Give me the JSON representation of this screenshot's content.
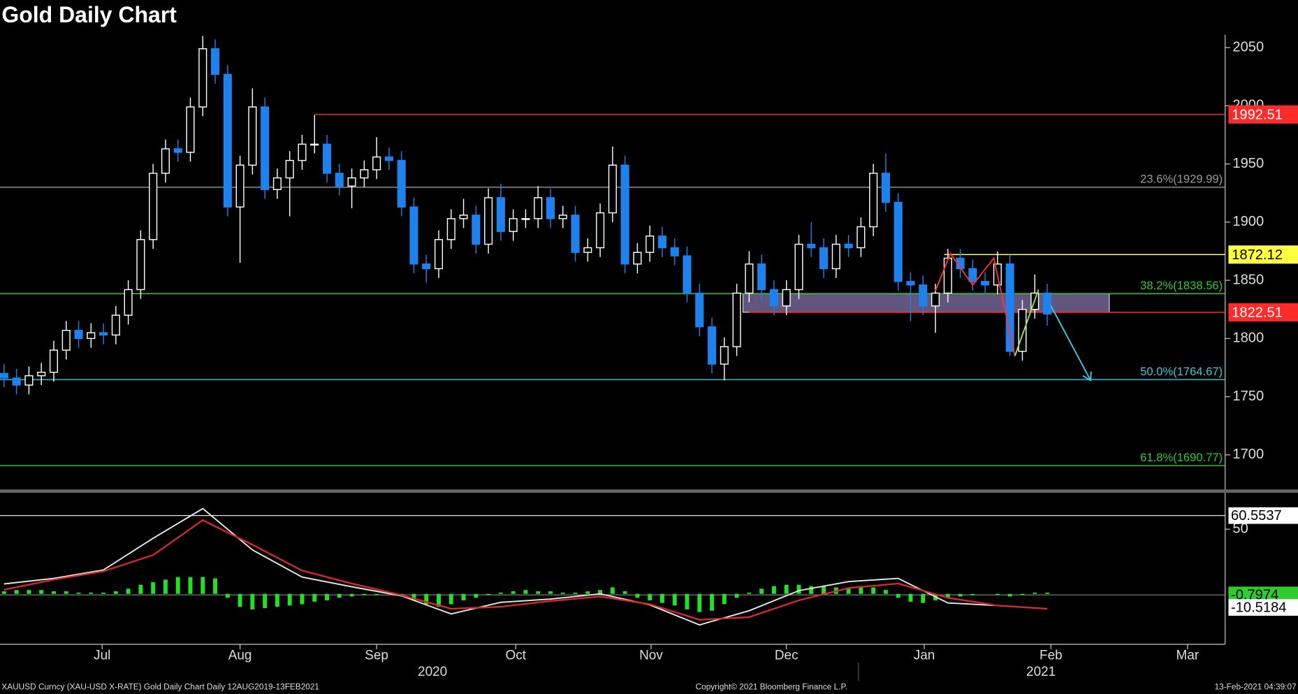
{
  "chart_data": [
    {
      "type": "candlestick",
      "title": "Gold Daily Chart",
      "candles": [
        [
          1770,
          1778,
          1758,
          1766
        ],
        [
          1766,
          1774,
          1752,
          1760
        ],
        [
          1760,
          1776,
          1752,
          1768
        ],
        [
          1768,
          1779,
          1760,
          1771
        ],
        [
          1771,
          1798,
          1763,
          1790
        ],
        [
          1790,
          1815,
          1782,
          1807
        ],
        [
          1807,
          1815,
          1792,
          1800
        ],
        [
          1800,
          1813,
          1792,
          1805
        ],
        [
          1805,
          1813,
          1795,
          1803
        ],
        [
          1803,
          1828,
          1795,
          1820
        ],
        [
          1820,
          1850,
          1812,
          1842
        ],
        [
          1842,
          1893,
          1834,
          1885
        ],
        [
          1885,
          1950,
          1877,
          1942
        ],
        [
          1942,
          1971,
          1934,
          1963
        ],
        [
          1963,
          1971,
          1952,
          1960
        ],
        [
          1960,
          2007,
          1952,
          1999
        ],
        [
          1999,
          2060,
          1991,
          2049
        ],
        [
          2049,
          2057,
          2019,
          2027
        ],
        [
          2027,
          2035,
          1905,
          1913
        ],
        [
          1913,
          1957,
          1865,
          1949
        ],
        [
          1949,
          2015,
          1941,
          1999
        ],
        [
          1999,
          2007,
          1920,
          1928
        ],
        [
          1928,
          1946,
          1920,
          1938
        ],
        [
          1938,
          1961,
          1905,
          1953
        ],
        [
          1953,
          1975,
          1945,
          1967
        ],
        [
          1967,
          1992,
          1959,
          1967
        ],
        [
          1967,
          1975,
          1934,
          1942
        ],
        [
          1942,
          1950,
          1923,
          1931
        ],
        [
          1931,
          1946,
          1912,
          1938
        ],
        [
          1938,
          1953,
          1930,
          1945
        ],
        [
          1945,
          1973,
          1937,
          1956
        ],
        [
          1956,
          1964,
          1945,
          1953
        ],
        [
          1953,
          1961,
          1905,
          1913
        ],
        [
          1913,
          1921,
          1856,
          1864
        ],
        [
          1864,
          1872,
          1848,
          1860
        ],
        [
          1860,
          1893,
          1852,
          1885
        ],
        [
          1885,
          1911,
          1877,
          1903
        ],
        [
          1903,
          1920,
          1895,
          1906
        ],
        [
          1906,
          1914,
          1873,
          1881
        ],
        [
          1881,
          1929,
          1873,
          1921
        ],
        [
          1921,
          1933,
          1884,
          1892
        ],
        [
          1892,
          1911,
          1884,
          1903
        ],
        [
          1903,
          1911,
          1895,
          1903
        ],
        [
          1903,
          1931,
          1895,
          1921
        ],
        [
          1921,
          1929,
          1895,
          1903
        ],
        [
          1903,
          1914,
          1895,
          1906
        ],
        [
          1906,
          1914,
          1866,
          1874
        ],
        [
          1874,
          1886,
          1866,
          1878
        ],
        [
          1878,
          1916,
          1870,
          1908
        ],
        [
          1908,
          1965,
          1900,
          1949
        ],
        [
          1949,
          1957,
          1856,
          1864
        ],
        [
          1864,
          1882,
          1856,
          1874
        ],
        [
          1874,
          1897,
          1866,
          1888
        ],
        [
          1888,
          1896,
          1870,
          1878
        ],
        [
          1878,
          1886,
          1863,
          1871
        ],
        [
          1871,
          1879,
          1831,
          1839
        ],
        [
          1839,
          1847,
          1802,
          1810
        ],
        [
          1810,
          1818,
          1770,
          1778
        ],
        [
          1778,
          1801,
          1764,
          1793
        ],
        [
          1793,
          1847,
          1785,
          1839
        ],
        [
          1839,
          1875,
          1831,
          1864
        ],
        [
          1864,
          1872,
          1834,
          1842
        ],
        [
          1842,
          1850,
          1820,
          1828
        ],
        [
          1828,
          1850,
          1820,
          1842
        ],
        [
          1842,
          1889,
          1834,
          1881
        ],
        [
          1881,
          1900,
          1870,
          1878
        ],
        [
          1878,
          1886,
          1852,
          1860
        ],
        [
          1860,
          1889,
          1852,
          1881
        ],
        [
          1881,
          1889,
          1870,
          1878
        ],
        [
          1878,
          1904,
          1870,
          1896
        ],
        [
          1896,
          1950,
          1888,
          1942
        ],
        [
          1942,
          1959,
          1909,
          1917
        ],
        [
          1917,
          1925,
          1841,
          1849
        ],
        [
          1849,
          1857,
          1815,
          1846
        ],
        [
          1846,
          1854,
          1820,
          1828
        ],
        [
          1828,
          1847,
          1805,
          1839
        ],
        [
          1839,
          1877,
          1831,
          1869
        ],
        [
          1869,
          1877,
          1852,
          1860
        ],
        [
          1860,
          1868,
          1841,
          1849
        ],
        [
          1849,
          1857,
          1838,
          1846
        ],
        [
          1846,
          1875,
          1838,
          1864
        ],
        [
          1864,
          1872,
          1785,
          1789
        ],
        [
          1789,
          1833,
          1781,
          1825
        ],
        [
          1825,
          1855,
          1817,
          1839
        ],
        [
          1839,
          1847,
          1811,
          1821
        ]
      ],
      "up_color": "#ffffff",
      "down_color": "#1e82ee",
      "xlim": [
        -0.33,
        98.33
      ],
      "ylim": [
        1671,
        2061
      ],
      "yticks": [
        1700,
        1750,
        1800,
        1850,
        1900,
        1950,
        2000,
        2050
      ],
      "xticks": [
        {
          "value": 7.9,
          "label": "Jul"
        },
        {
          "value": 19,
          "label": "Aug"
        },
        {
          "value": 30,
          "label": "Sep"
        },
        {
          "value": 41.2,
          "label": "Oct"
        },
        {
          "value": 52.1,
          "label": "Nov"
        },
        {
          "value": 63,
          "label": "Dec"
        },
        {
          "value": 74.1,
          "label": "Jan"
        },
        {
          "value": 84.3,
          "label": "Feb"
        },
        {
          "value": 95.3,
          "label": "Mar"
        }
      ],
      "year_ticks": [
        {
          "value": 34.5,
          "label": "2020"
        },
        {
          "value": 83.5,
          "label": "2021"
        }
      ],
      "levels": [
        {
          "value": 1992.51,
          "color": "#ff2a2a",
          "from": 25
        },
        {
          "value": 1929.99,
          "label": "23.6%(1929.99)",
          "color": "#9a9a9a"
        },
        {
          "value": 1872.12,
          "color": "#ffff40",
          "from": 75.7
        },
        {
          "value": 1838.56,
          "label": "38.2%(1838.56)",
          "color": "#2ecc2e"
        },
        {
          "value": 1822.51,
          "color": "#ff2a2a",
          "from": 60
        },
        {
          "value": 1764.67,
          "label": "50.0%(1764.67)",
          "color": "#3cc8e0"
        },
        {
          "value": 1690.77,
          "label": "61.8%(1690.77)",
          "color": "#2ecc2e"
        }
      ],
      "zone": {
        "from": 59.5,
        "to": 89,
        "low": 1822.51,
        "high": 1838.56,
        "color": "#b49ce6"
      },
      "drawings": [
        {
          "color": "#ff3030",
          "x": [
            75,
            76.2,
            78,
            79.7,
            81.4
          ],
          "y": [
            1841,
            1873,
            1846,
            1869,
            1785
          ]
        },
        {
          "color": "#9be64b",
          "x": [
            81.4,
            83.3
          ],
          "y": [
            1785,
            1842
          ]
        },
        {
          "color": "#3cc8e0",
          "x": [
            84.3,
            87.5
          ],
          "y": [
            1828,
            1764
          ],
          "arrow": true
        }
      ]
    },
    {
      "type": "macd",
      "macd_x": [
        0,
        4,
        8,
        12,
        16,
        20,
        24,
        28,
        32,
        36,
        40,
        44,
        48,
        52,
        56,
        60,
        64,
        68,
        72,
        76,
        80,
        84
      ],
      "series": [
        {
          "color": "#e8e8e8",
          "values": [
            7.7,
            12,
            18.5,
            43,
            66,
            34,
            13,
            5.5,
            -1.5,
            -15.5,
            -6.5,
            -4,
            0,
            -8.5,
            -24,
            -13,
            2.5,
            9.5,
            12,
            -7,
            -9,
            -11.5
          ]
        },
        {
          "color": "#d42a2a",
          "values": [
            3.2,
            11,
            17.5,
            30,
            57,
            38,
            18,
            8,
            -1,
            -11.5,
            -10,
            -5.5,
            -2,
            -8,
            -20,
            -18,
            -5,
            4.5,
            8,
            -3,
            -9,
            -11.5
          ]
        }
      ],
      "histogram": {
        "color": "#22e022",
        "values": [
          2,
          3,
          3,
          3,
          2,
          2,
          1,
          1,
          1,
          2,
          4,
          7,
          9,
          11,
          13,
          13,
          13,
          12,
          -3,
          -10,
          -12,
          -11,
          -10,
          -9,
          -8,
          -6,
          -5,
          -3,
          -2,
          -1,
          -1,
          0,
          -1,
          -5,
          -8,
          -10,
          -8,
          -5,
          -3,
          -1,
          1,
          2,
          3,
          2,
          2,
          1,
          1,
          2,
          3,
          5,
          2,
          -3,
          -5,
          -7,
          -9,
          -12,
          -14,
          -13,
          -8,
          -3,
          1,
          4,
          6,
          7,
          7,
          6,
          6,
          5,
          5,
          6,
          5,
          3,
          -3,
          -6,
          -7,
          -5,
          -3,
          -2,
          -1,
          0,
          -1,
          -2,
          -1,
          1,
          1
        ]
      },
      "ylim": [
        -39,
        75
      ],
      "yticks": [
        50
      ],
      "levels": [
        {
          "value": 60.5537,
          "color": "#ffffff",
          "line": true
        },
        {
          "value": -0.7974,
          "color": "#2ecc2e",
          "line": true
        },
        {
          "value": -10.5184,
          "color": "#ffffff",
          "line": false
        }
      ]
    }
  ],
  "footer": {
    "left": "XAUUSD Curncy (XAU-USD X-RATE) Gold Daily Chart  Daily 12AUG2019-13FEB2021",
    "center": "Copyright© 2021 Bloomberg Finance L.P.",
    "right": "13-Feb-2021 04:39:07"
  }
}
